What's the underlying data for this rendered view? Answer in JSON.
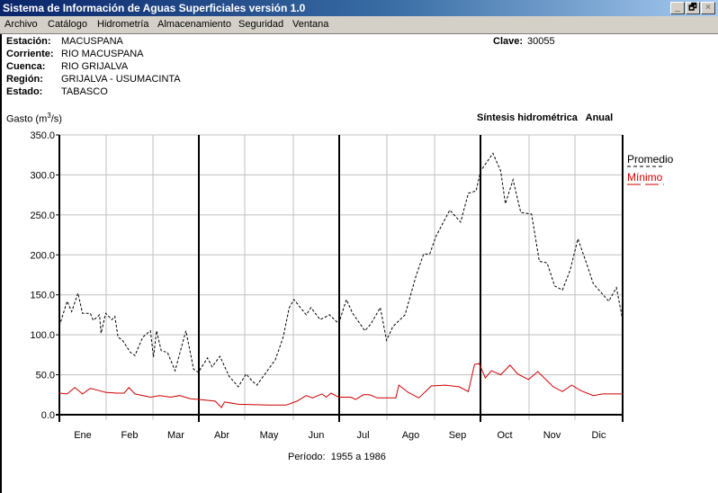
{
  "window": {
    "title": "Sistema de Información de Aguas Superficiales  versión 1.0",
    "minimize": "_",
    "restore": "🗗",
    "close": "×"
  },
  "menu": [
    "Archivo",
    "Catálogo",
    "Hidrometría",
    "Almacenamiento",
    "Seguridad",
    "Ventana"
  ],
  "station": {
    "estacion_label": "Estación:",
    "estacion": "MACUSPANA",
    "corriente_label": "Corriente:",
    "corriente": "RIO MACUSPANA",
    "cuenca_label": "Cuenca:",
    "cuenca": "RIO GRIJALVA",
    "region_label": "Región:",
    "region": "GRIJALVA - USUMACINTA",
    "estado_label": "Estado:",
    "estado": "TABASCO",
    "clave_label": "Clave:",
    "clave": "30055"
  },
  "chart_data": {
    "type": "line",
    "title": "Síntesis hidrométrica   Anual",
    "ylabel": "Gasto (m",
    "ylabel_sup": "3",
    "ylabel_end": "/s)",
    "ylim": [
      0,
      350
    ],
    "yticks": [
      "0.0",
      "50.0",
      "100.0",
      "150.0",
      "200.0",
      "250.0",
      "300.0",
      "350.0"
    ],
    "categories": [
      "Ene",
      "Feb",
      "Mar",
      "Abr",
      "May",
      "Jun",
      "Jul",
      "Ago",
      "Sep",
      "Oct",
      "Nov",
      "Dic"
    ],
    "xlim_days": [
      0,
      365
    ],
    "period": "Período:  1955 a 1986",
    "legend_position": "right",
    "series": [
      {
        "name": "Promedio",
        "color": "#000000",
        "dashed": true,
        "x": [
          0,
          5,
          8,
          12,
          15,
          20,
          22,
          26,
          27,
          30,
          34,
          36,
          38,
          41,
          46,
          49,
          54,
          59,
          61,
          63,
          66,
          70,
          75,
          82,
          87,
          90,
          96,
          99,
          104,
          110,
          116,
          121,
          125,
          128,
          140,
          145,
          149,
          152,
          160,
          163,
          169,
          175,
          181,
          186,
          190,
          198,
          202,
          208,
          212,
          216,
          224,
          231,
          236,
          240,
          244,
          253,
          260,
          265,
          270,
          273,
          281,
          286,
          289,
          294,
          299,
          306,
          311,
          316,
          321,
          326,
          331,
          336,
          342,
          346,
          356,
          361,
          365
        ],
        "values": [
          111,
          142,
          129,
          152,
          127,
          127,
          118,
          125,
          102,
          127,
          119,
          123,
          97,
          93,
          78,
          74,
          97,
          105,
          72,
          105,
          80,
          78,
          55,
          105,
          57,
          53,
          71,
          60,
          73,
          48,
          35,
          51,
          42,
          37,
          69,
          97,
          134,
          144,
          125,
          134,
          119,
          125,
          114,
          144,
          127,
          105,
          114,
          134,
          93,
          110,
          125,
          173,
          201,
          201,
          223,
          256,
          241,
          277,
          280,
          305,
          327,
          305,
          264,
          294,
          253,
          251,
          192,
          190,
          161,
          156,
          181,
          220,
          187,
          164,
          142,
          159,
          119
        ]
      },
      {
        "name": "Mínimo",
        "color": "#cc0000",
        "dashed": false,
        "x": [
          0,
          5,
          10,
          15,
          20,
          26,
          30,
          37,
          42,
          45,
          49,
          59,
          65,
          72,
          78,
          85,
          91,
          101,
          105,
          107,
          116,
          136,
          147,
          154,
          160,
          164,
          170,
          173,
          176,
          181,
          189,
          192,
          197,
          201,
          206,
          218,
          220,
          226,
          233,
          241,
          250,
          259,
          265,
          269,
          272,
          276,
          280,
          286,
          292,
          297,
          304,
          310,
          320,
          326,
          332,
          338,
          346,
          352,
          365
        ],
        "values": [
          27,
          26,
          34,
          26,
          33,
          30,
          28,
          27,
          27,
          34,
          26,
          22,
          24,
          22,
          24,
          20,
          19,
          17,
          9,
          16,
          13,
          12,
          12,
          17,
          24,
          21,
          26,
          22,
          27,
          22,
          22,
          19,
          25,
          25,
          21,
          21,
          37,
          28,
          21,
          36,
          37,
          35,
          29,
          63,
          64,
          46,
          55,
          50,
          62,
          51,
          44,
          54,
          35,
          29,
          37,
          30,
          24,
          26,
          26
        ]
      }
    ]
  }
}
